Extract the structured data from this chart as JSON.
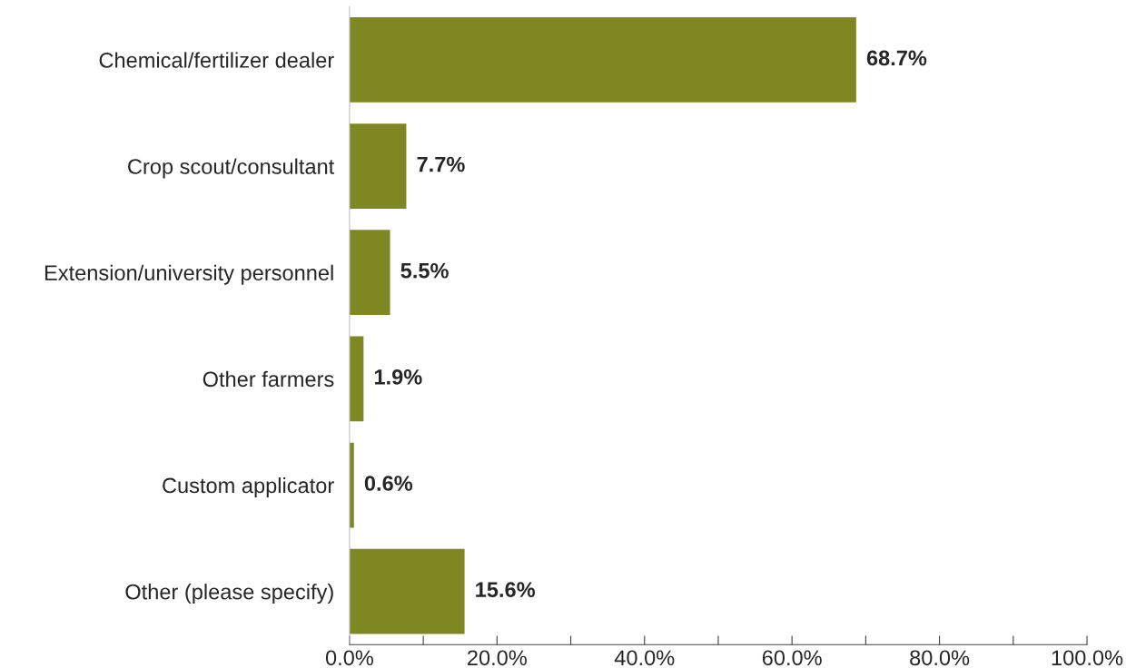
{
  "chart_data": {
    "type": "bar",
    "orientation": "horizontal",
    "categories": [
      "Chemical/fertilizer dealer",
      "Crop scout/consultant",
      "Extension/university personnel",
      "Other farmers",
      "Custom applicator",
      "Other (please specify)"
    ],
    "values": [
      68.7,
      7.7,
      5.5,
      1.9,
      0.6,
      15.6
    ],
    "value_labels": [
      "68.7%",
      "7.7%",
      "5.5%",
      "1.9%",
      "0.6%",
      "15.6%"
    ],
    "color": "#7f8722",
    "xlim": [
      0,
      100
    ],
    "xticks": [
      {
        "value": 0,
        "label": "0.0%"
      },
      {
        "value": 10,
        "label": null
      },
      {
        "value": 20,
        "label": "20.0%"
      },
      {
        "value": 30,
        "label": null
      },
      {
        "value": 40,
        "label": "40.0%"
      },
      {
        "value": 50,
        "label": null
      },
      {
        "value": 60,
        "label": "60.0%"
      },
      {
        "value": 70,
        "label": null
      },
      {
        "value": 80,
        "label": "80.0%"
      },
      {
        "value": 90,
        "label": null
      },
      {
        "value": 100,
        "label": "100.0%"
      }
    ],
    "grid": false
  }
}
